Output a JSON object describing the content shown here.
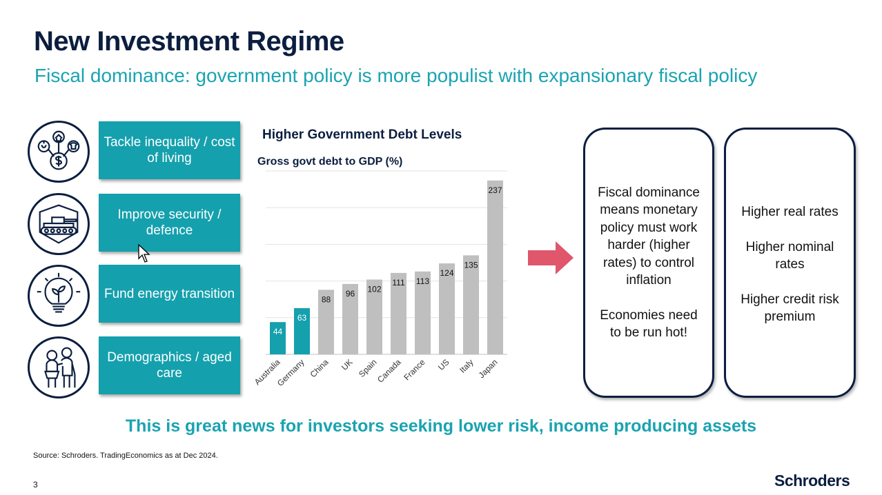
{
  "header": {
    "title": "New Investment Regime",
    "subtitle": "Fiscal dominance: government policy is more populist with expansionary fiscal policy"
  },
  "policies": [
    {
      "label": "Tackle inequality / cost of living",
      "icon": "cost-of-living-icon"
    },
    {
      "label": "Improve security / defence",
      "icon": "tank-icon"
    },
    {
      "label": "Fund energy transition",
      "icon": "lightbulb-plant-icon"
    },
    {
      "label": "Demographics / aged care",
      "icon": "elderly-couple-icon"
    }
  ],
  "chart_data": {
    "type": "bar",
    "title": "Higher Government Debt Levels",
    "ylabel": "Gross govt debt to GDP (%)",
    "xlabel": "",
    "categories": [
      "Australia",
      "Germany",
      "China",
      "UK",
      "Spain",
      "Canada",
      "France",
      "US",
      "Italy",
      "Japan"
    ],
    "values": [
      44,
      63,
      88,
      96,
      102,
      111,
      113,
      124,
      135,
      237
    ],
    "highlighted": [
      "Australia",
      "Germany"
    ],
    "ylim": [
      0,
      250
    ],
    "grid": true,
    "colors": {
      "highlight": "#15a0ad",
      "default": "#bfbfbf"
    }
  },
  "right_panel": {
    "box1": {
      "para1": "Fiscal dominance means monetary policy must work harder (higher rates) to control inflation",
      "para2": "Economies need to be run hot!"
    },
    "box2": {
      "item1": "Higher real rates",
      "item2": "Higher nominal rates",
      "item3": "Higher credit risk premium"
    }
  },
  "banner": "This is great news for investors seeking lower risk, income producing assets",
  "footer": {
    "source": "Source: Schroders. TradingEconomics as at Dec 2024.",
    "page_number": "3",
    "logo": "Schroders"
  },
  "colors": {
    "navy": "#0b1e3f",
    "teal": "#15a0ad",
    "arrow": "#e0566b"
  }
}
